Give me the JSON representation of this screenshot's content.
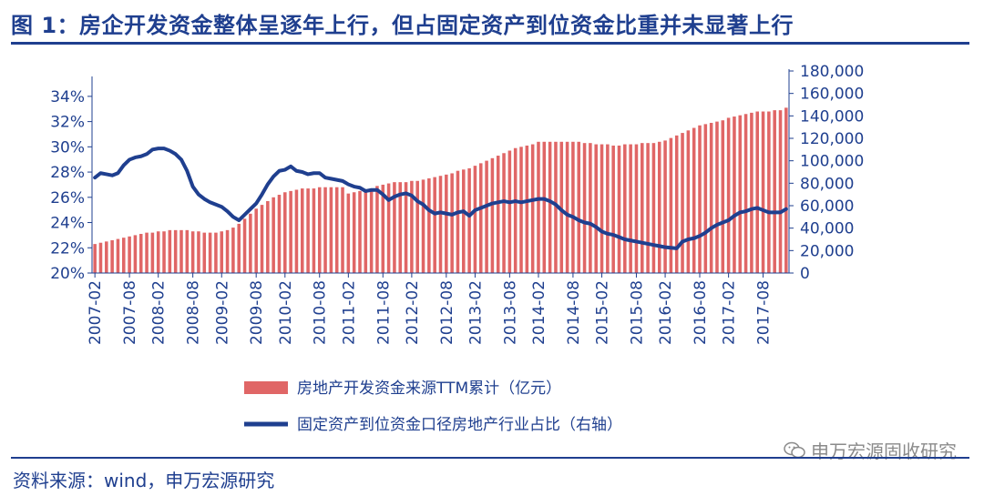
{
  "header": {
    "title": "图 1：房企开发资金整体呈逐年上行，但占固定资产到位资金比重并未显著上行"
  },
  "footer": {
    "source": "资料来源：wind，申万宏源研究",
    "watermark": "申万宏源固收研究"
  },
  "colors": {
    "bar": "#e06666",
    "line": "#1f3f8f",
    "text": "#1f3f8f"
  },
  "chart_data": {
    "type": "bar",
    "combo": "bar+line",
    "x": [
      "2007-02",
      "2007-03",
      "2007-04",
      "2007-05",
      "2007-06",
      "2007-07",
      "2007-08",
      "2007-09",
      "2007-10",
      "2007-11",
      "2007-12",
      "2008-02",
      "2008-03",
      "2008-04",
      "2008-05",
      "2008-06",
      "2008-07",
      "2008-08",
      "2008-09",
      "2008-10",
      "2008-11",
      "2008-12",
      "2009-02",
      "2009-03",
      "2009-04",
      "2009-05",
      "2009-06",
      "2009-07",
      "2009-08",
      "2009-09",
      "2009-10",
      "2009-11",
      "2009-12",
      "2010-02",
      "2010-03",
      "2010-04",
      "2010-05",
      "2010-06",
      "2010-07",
      "2010-08",
      "2010-09",
      "2010-10",
      "2010-11",
      "2010-12",
      "2011-02",
      "2011-03",
      "2011-04",
      "2011-05",
      "2011-06",
      "2011-07",
      "2011-08",
      "2011-09",
      "2011-10",
      "2011-11",
      "2011-12",
      "2012-02",
      "2012-03",
      "2012-04",
      "2012-05",
      "2012-06",
      "2012-07",
      "2012-08",
      "2012-09",
      "2012-10",
      "2012-11",
      "2012-12",
      "2013-02",
      "2013-03",
      "2013-04",
      "2013-05",
      "2013-06",
      "2013-07",
      "2013-08",
      "2013-09",
      "2013-10",
      "2013-11",
      "2013-12",
      "2014-02",
      "2014-03",
      "2014-04",
      "2014-05",
      "2014-06",
      "2014-07",
      "2014-08",
      "2014-09",
      "2014-10",
      "2014-11",
      "2014-12",
      "2015-02",
      "2015-03",
      "2015-04",
      "2015-05",
      "2015-06",
      "2015-07",
      "2015-08",
      "2015-09",
      "2015-10",
      "2015-11",
      "2015-12",
      "2016-02",
      "2016-03",
      "2016-04",
      "2016-05",
      "2016-06",
      "2016-07",
      "2016-08",
      "2016-09",
      "2016-10",
      "2016-11",
      "2016-12",
      "2017-02",
      "2017-03",
      "2017-04",
      "2017-05",
      "2017-06",
      "2017-07",
      "2017-08",
      "2017-09",
      "2017-10",
      "2017-11",
      "2017-12"
    ],
    "x_tick_labels": [
      "2007-02",
      "2007-08",
      "2008-02",
      "2008-08",
      "2009-02",
      "2009-08",
      "2010-02",
      "2010-08",
      "2011-02",
      "2011-08",
      "2012-02",
      "2012-08",
      "2013-02",
      "2013-08",
      "2014-02",
      "2014-08",
      "2015-02",
      "2015-08",
      "2016-02",
      "2016-08",
      "2017-02",
      "2017-08"
    ],
    "y_left": {
      "ticks": [
        "20%",
        "22%",
        "24%",
        "26%",
        "28%",
        "30%",
        "32%",
        "34%"
      ],
      "range": [
        20,
        35
      ],
      "unit": "%"
    },
    "y_right": {
      "ticks": [
        "0",
        "20,000",
        "40,000",
        "60,000",
        "80,000",
        "100,000",
        "120,000",
        "140,000",
        "160,000",
        "180,000"
      ],
      "range": [
        0,
        180000
      ]
    },
    "series": [
      {
        "name": "房地产开发资金来源TTM累计（亿元）",
        "type": "bar",
        "axis": "left",
        "values": [
          22.3,
          22.4,
          22.5,
          22.6,
          22.7,
          22.8,
          22.9,
          23.0,
          23.1,
          23.2,
          23.2,
          23.3,
          23.3,
          23.4,
          23.4,
          23.4,
          23.4,
          23.3,
          23.3,
          23.2,
          23.2,
          23.2,
          23.3,
          23.4,
          23.6,
          23.9,
          24.3,
          24.7,
          25.1,
          25.4,
          25.7,
          26.0,
          26.2,
          26.4,
          26.5,
          26.6,
          26.7,
          26.7,
          26.7,
          26.8,
          26.8,
          26.8,
          26.8,
          26.8,
          26.3,
          26.4,
          26.5,
          26.6,
          26.7,
          26.9,
          27.0,
          27.1,
          27.2,
          27.2,
          27.2,
          27.3,
          27.3,
          27.4,
          27.5,
          27.6,
          27.7,
          27.8,
          27.9,
          28.1,
          28.2,
          28.3,
          28.5,
          28.7,
          28.9,
          29.1,
          29.3,
          29.5,
          29.7,
          29.9,
          30.0,
          30.1,
          30.2,
          30.4,
          30.4,
          30.4,
          30.4,
          30.4,
          30.4,
          30.4,
          30.4,
          30.3,
          30.3,
          30.2,
          30.2,
          30.2,
          30.1,
          30.1,
          30.2,
          30.2,
          30.2,
          30.3,
          30.3,
          30.3,
          30.4,
          30.5,
          30.7,
          30.9,
          31.1,
          31.3,
          31.5,
          31.7,
          31.8,
          31.9,
          32.0,
          32.1,
          32.3,
          32.4,
          32.5,
          32.6,
          32.7,
          32.8,
          32.8,
          32.8,
          32.9,
          32.9,
          33.1
        ]
      },
      {
        "name": "固定资产到位资金口径房地产行业占比（右轴）",
        "type": "line",
        "axis": "right",
        "values": [
          85000,
          89000,
          88000,
          87000,
          89000,
          96000,
          101000,
          103000,
          104000,
          106000,
          110000,
          111000,
          111000,
          109000,
          106000,
          101000,
          91000,
          77000,
          70000,
          66000,
          63000,
          61000,
          59000,
          55000,
          50000,
          47000,
          52000,
          57000,
          62000,
          70000,
          79000,
          86000,
          91000,
          92000,
          95000,
          91000,
          90000,
          88000,
          89000,
          89000,
          85000,
          84000,
          83000,
          82000,
          79000,
          77000,
          76000,
          73000,
          74000,
          74000,
          70000,
          65000,
          68000,
          70000,
          71000,
          69000,
          64000,
          61000,
          56000,
          53000,
          54000,
          53000,
          52000,
          54000,
          55000,
          51000,
          56000,
          58000,
          60000,
          62000,
          63000,
          64000,
          63000,
          64000,
          63000,
          64000,
          65000,
          66000,
          66000,
          64000,
          61000,
          56000,
          52000,
          50000,
          47000,
          45000,
          44000,
          41000,
          37000,
          35000,
          34000,
          32000,
          30000,
          29000,
          28000,
          27000,
          26000,
          25000,
          24000,
          23000,
          22500,
          22000,
          28000,
          30000,
          31000,
          33000,
          36000,
          40000,
          43000,
          45000,
          47000,
          51000,
          54000,
          55000,
          57000,
          58000,
          56000,
          54000,
          54000,
          54000,
          57000
        ]
      }
    ],
    "legend": "bottom-center"
  }
}
